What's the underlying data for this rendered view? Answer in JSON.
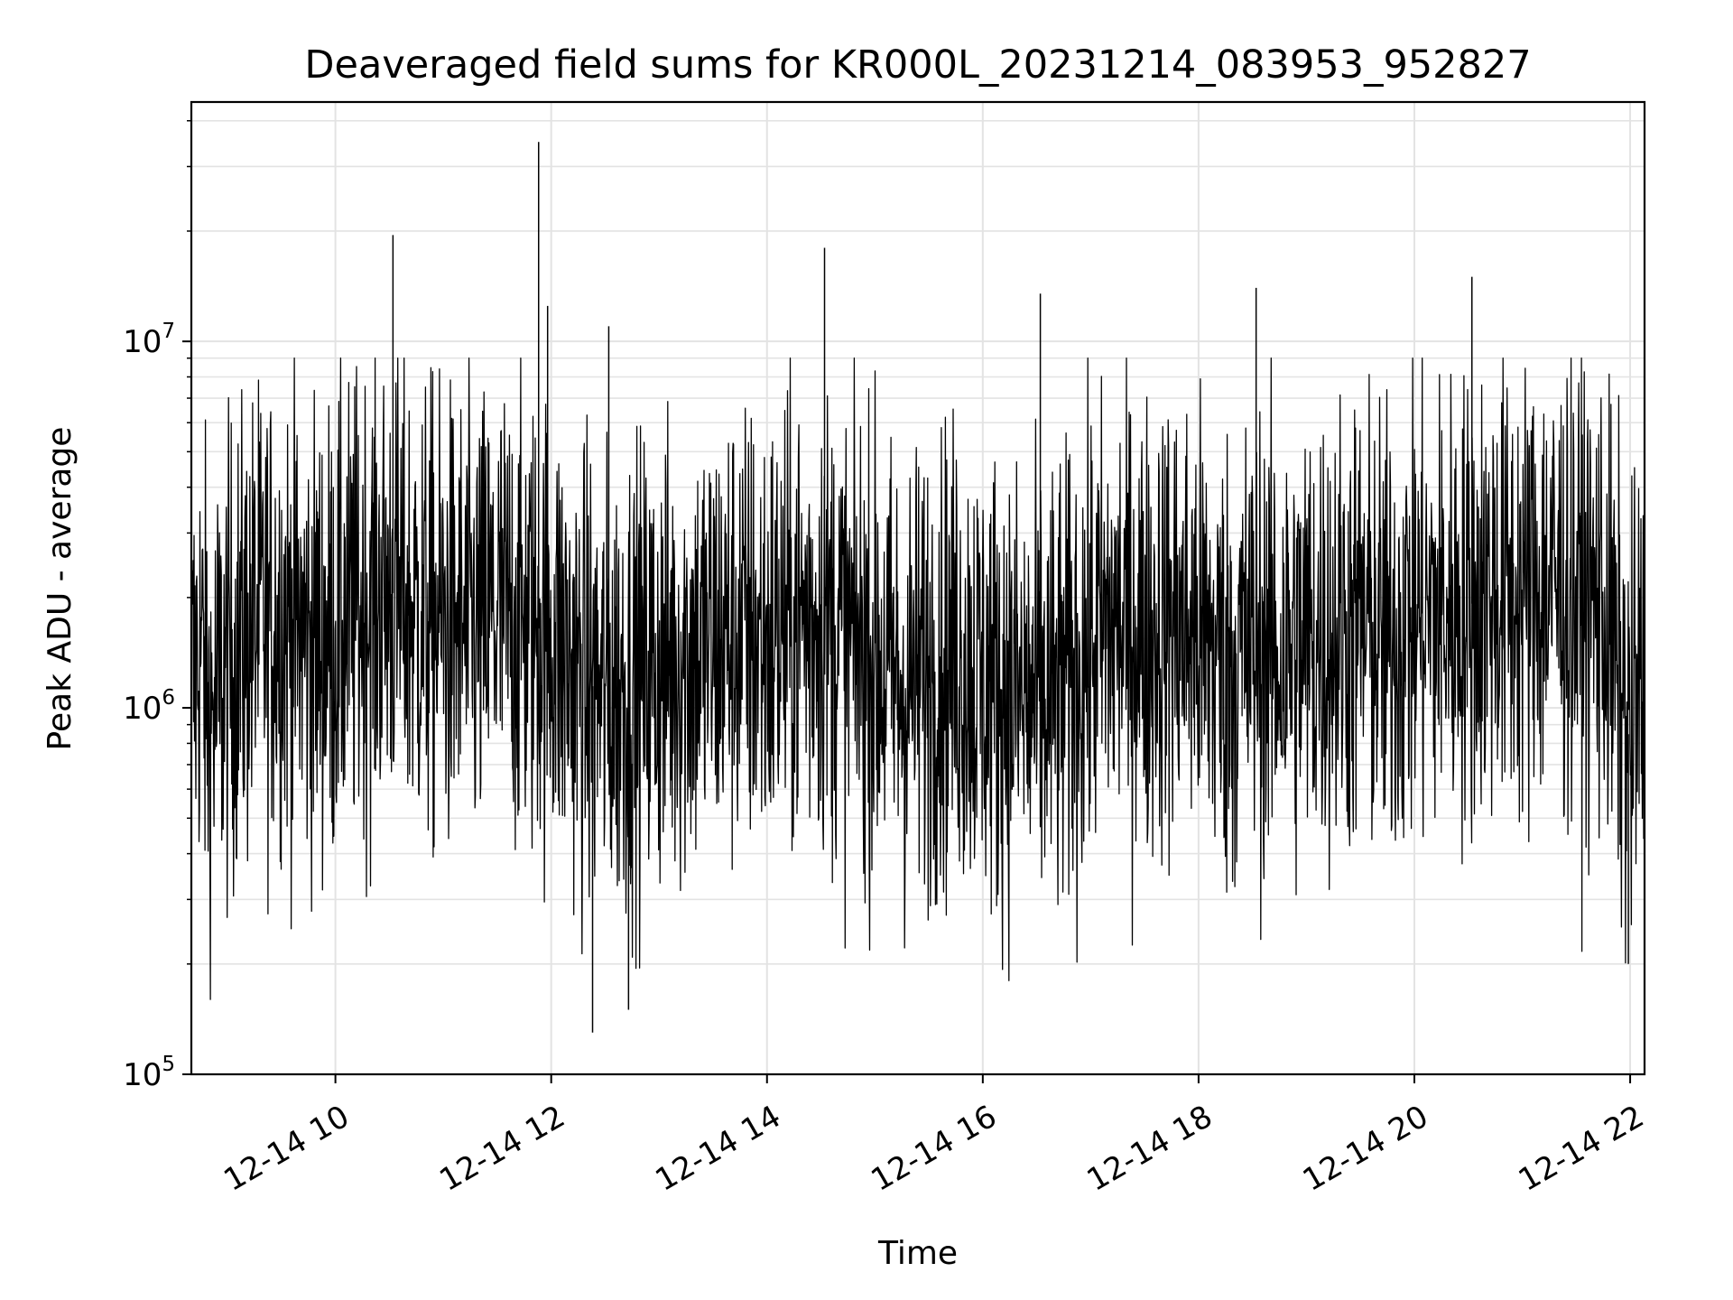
{
  "chart_data": {
    "type": "line",
    "title": "Deaveraged field sums for KR000L_20231214_083953_952827",
    "xlabel": "Time",
    "ylabel": "Peak ADU - average",
    "y_scale": "log",
    "ylim": [
      100000,
      45000000
    ],
    "xlim": [
      "2023-12-14 08:39:53",
      "2023-12-14 22:08:00"
    ],
    "x_ticks": [
      {
        "value": "2023-12-14 10:00",
        "label": "12-14 10"
      },
      {
        "value": "2023-12-14 12:00",
        "label": "12-14 12"
      },
      {
        "value": "2023-12-14 14:00",
        "label": "12-14 14"
      },
      {
        "value": "2023-12-14 16:00",
        "label": "12-14 16"
      },
      {
        "value": "2023-12-14 18:00",
        "label": "12-14 18"
      },
      {
        "value": "2023-12-14 20:00",
        "label": "12-14 20"
      },
      {
        "value": "2023-12-14 22:00",
        "label": "12-14 22"
      }
    ],
    "y_ticks": [
      {
        "value": 100000,
        "base": "10",
        "exp": "5"
      },
      {
        "value": 1000000,
        "base": "10",
        "exp": "6"
      },
      {
        "value": 10000000,
        "base": "10",
        "exp": "7"
      }
    ],
    "grid": true,
    "legend": "none",
    "line_color": "#000000",
    "series": [
      {
        "x": [
          "2023-12-14 08:40",
          "2023-12-14 08:45",
          "2023-12-14 08:50",
          "2023-12-14 09:00",
          "2023-12-14 09:15",
          "2023-12-14 09:30",
          "2023-12-14 09:45",
          "2023-12-14 10:00",
          "2023-12-14 10:15",
          "2023-12-14 10:30",
          "2023-12-14 10:45",
          "2023-12-14 11:00",
          "2023-12-14 11:15",
          "2023-12-14 11:30",
          "2023-12-14 11:45",
          "2023-12-14 12:00",
          "2023-12-14 12:15",
          "2023-12-14 12:30",
          "2023-12-14 12:45",
          "2023-12-14 13:00",
          "2023-12-14 13:15",
          "2023-12-14 13:30",
          "2023-12-14 13:45",
          "2023-12-14 14:00",
          "2023-12-14 14:15",
          "2023-12-14 14:30",
          "2023-12-14 14:45",
          "2023-12-14 15:00",
          "2023-12-14 15:15",
          "2023-12-14 15:30",
          "2023-12-14 15:45",
          "2023-12-14 16:00",
          "2023-12-14 16:15",
          "2023-12-14 16:30",
          "2023-12-14 16:45",
          "2023-12-14 17:00",
          "2023-12-14 17:15",
          "2023-12-14 17:30",
          "2023-12-14 17:45",
          "2023-12-14 18:00",
          "2023-12-14 18:15",
          "2023-12-14 18:30",
          "2023-12-14 18:45",
          "2023-12-14 19:00",
          "2023-12-14 19:15",
          "2023-12-14 19:30",
          "2023-12-14 19:45",
          "2023-12-14 20:00",
          "2023-12-14 20:15",
          "2023-12-14 20:30",
          "2023-12-14 20:45",
          "2023-12-14 21:00",
          "2023-12-14 21:15",
          "2023-12-14 21:30",
          "2023-12-14 21:45",
          "2023-12-14 22:00",
          "2023-12-14 22:05"
        ],
        "y": [
          1100000,
          1500000,
          900000,
          1300000,
          1700000,
          1800000,
          1500000,
          1600000,
          1900000,
          2100000,
          1800000,
          1700000,
          1600000,
          1800000,
          1700000,
          1600000,
          1200000,
          1100000,
          1200000,
          1300000,
          1400000,
          1500000,
          1600000,
          1500000,
          1700000,
          1800000,
          1500000,
          1400000,
          1100000,
          1300000,
          1400000,
          1200000,
          1100000,
          1000000,
          1100000,
          1500000,
          1700000,
          1600000,
          1700000,
          1600000,
          1300000,
          1500000,
          1400000,
          1500000,
          1600000,
          1700000,
          1500000,
          1800000,
          1800000,
          1900000,
          2100000,
          2000000,
          2200000,
          2000000,
          1900000,
          800000,
          1100000
        ]
      }
    ],
    "spikes": [
      {
        "x": "2023-12-14 10:32",
        "y": 19500000
      },
      {
        "x": "2023-12-14 11:53",
        "y": 35000000
      },
      {
        "x": "2023-12-14 11:58",
        "y": 12500000
      },
      {
        "x": "2023-12-14 12:32",
        "y": 11000000
      },
      {
        "x": "2023-12-14 14:32",
        "y": 18000000
      },
      {
        "x": "2023-12-14 16:32",
        "y": 13500000
      },
      {
        "x": "2023-12-14 18:32",
        "y": 14000000
      },
      {
        "x": "2023-12-14 20:32",
        "y": 15000000
      },
      {
        "x": "2023-12-14 12:23",
        "y": 130000
      },
      {
        "x": "2023-12-14 12:43",
        "y": 150000
      },
      {
        "x": "2023-12-14 21:59",
        "y": 200000
      }
    ]
  }
}
